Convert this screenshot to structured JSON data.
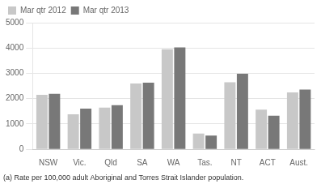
{
  "chart_data": {
    "type": "bar",
    "categories": [
      "NSW",
      "Vic.",
      "Qld",
      "SA",
      "WA",
      "Tas.",
      "NT",
      "ACT",
      "Aust."
    ],
    "series": [
      {
        "name": "Mar qtr 2012",
        "color": "#c8c8c8",
        "values": [
          2150,
          1380,
          1650,
          2600,
          3950,
          620,
          2650,
          1570,
          2250
        ]
      },
      {
        "name": "Mar qtr 2013",
        "color": "#787878",
        "values": [
          2190,
          1610,
          1740,
          2630,
          4020,
          545,
          2980,
          1330,
          2360
        ]
      }
    ],
    "ylim": [
      0,
      5000
    ],
    "yticks": [
      0,
      1000,
      2000,
      3000,
      4000,
      5000
    ],
    "grid": true,
    "legend": "upper left",
    "footnote": "(a) Rate per 100,000 adult Aboriginal and Torres Strait Islander population."
  }
}
